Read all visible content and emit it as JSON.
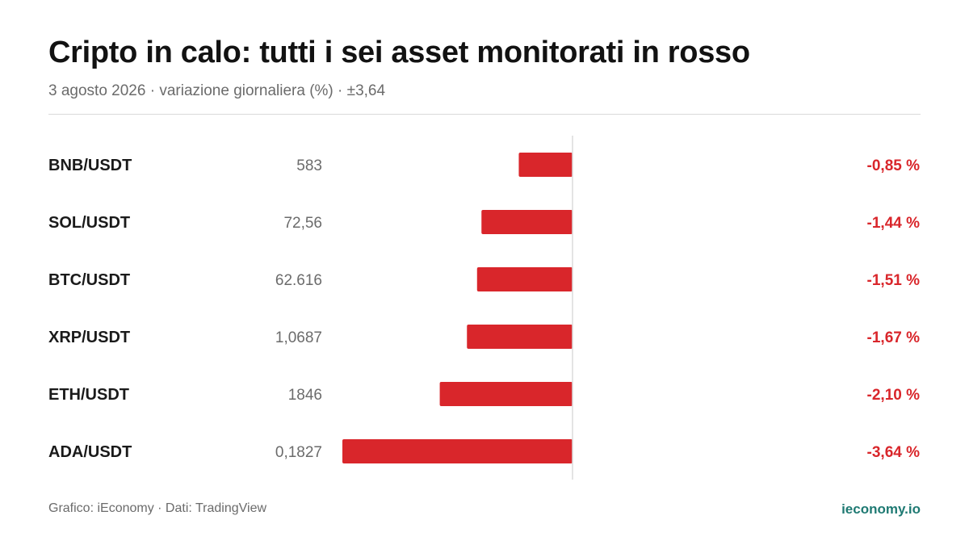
{
  "header": {
    "title": "Cripto in calo: tutti i sei asset monitorati in rosso",
    "subtitle": "3 agosto 2026 · variazione giornaliera (%) · ±3,64"
  },
  "footer": {
    "source": "Grafico: iEconomy · Dati: TradingView",
    "brand": "ieconomy.io"
  },
  "colors": {
    "negative": "#d9262b",
    "label": "#1a1a1a",
    "price": "#6b6b6b",
    "axis": "#dcdcdc",
    "brand": "#1f7a73"
  },
  "chart_data": {
    "type": "bar",
    "orientation": "horizontal",
    "categories": [
      "BNB/USDT",
      "SOL/USDT",
      "BTC/USDT",
      "XRP/USDT",
      "ETH/USDT",
      "ADA/USDT"
    ],
    "prices": [
      "583",
      "72,56",
      "62.616",
      "1,0687",
      "1846",
      "0,1827"
    ],
    "values": [
      -0.85,
      -1.44,
      -1.51,
      -1.67,
      -2.1,
      -3.64
    ],
    "value_labels": [
      "-0,85 %",
      "-1,44 %",
      "-1,51 %",
      "-1,67 %",
      "-2,10 %",
      "-3,64 %"
    ],
    "xlim": [
      -3.64,
      3.64
    ],
    "grid": false,
    "legend": "none"
  }
}
